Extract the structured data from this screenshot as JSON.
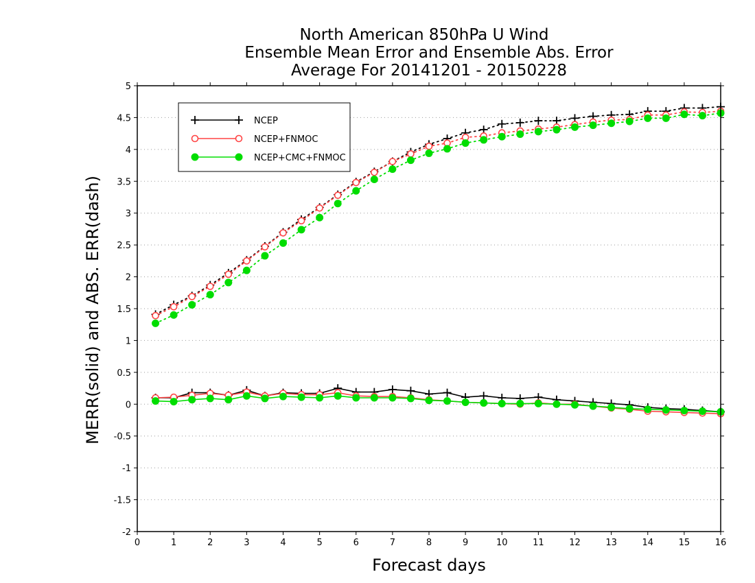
{
  "chart_data": {
    "type": "line",
    "title": [
      "North American 850hPa U Wind",
      "Ensemble Mean Error and Ensemble Abs. Error",
      "Average For 20141201 - 20150228"
    ],
    "xlabel": "Forecast days",
    "ylabel": "MERR(solid) and ABS. ERR(dash)",
    "xlim": [
      0,
      16
    ],
    "ylim": [
      -2,
      5
    ],
    "xticks": [
      0,
      1,
      2,
      3,
      4,
      5,
      6,
      7,
      8,
      9,
      10,
      11,
      12,
      13,
      14,
      15,
      16
    ],
    "xtick_labels": [
      "0",
      "1",
      "2",
      "3",
      "4",
      "5",
      "6",
      "7",
      "8",
      "9",
      "10",
      "11",
      "12",
      "13",
      "14",
      "15",
      "16"
    ],
    "yticks": [
      -2,
      -1.5,
      -1,
      -0.5,
      0,
      0.5,
      1,
      1.5,
      2,
      2.5,
      3,
      3.5,
      4,
      4.5,
      5
    ],
    "ytick_labels": [
      "-2",
      "-1.5",
      "-1",
      "-0.5",
      "0",
      "0.5",
      "1",
      "1.5",
      "2",
      "2.5",
      "3",
      "3.5",
      "4",
      "4.5",
      "5"
    ],
    "grid": "horizontal dotted",
    "legend_position": "top-left",
    "x": [
      0.5,
      1,
      1.5,
      2,
      2.5,
      3,
      3.5,
      4,
      4.5,
      5,
      5.5,
      6,
      6.5,
      7,
      7.5,
      8,
      8.5,
      9,
      9.5,
      10,
      10.5,
      11,
      11.5,
      12,
      12.5,
      13,
      13.5,
      14,
      14.5,
      15,
      15.5,
      16
    ],
    "series": [
      {
        "name": "NCEP",
        "color": "#000000",
        "marker": "plus",
        "abs_error": [
          1.41,
          1.56,
          1.7,
          1.87,
          2.06,
          2.26,
          2.48,
          2.7,
          2.9,
          3.09,
          3.29,
          3.49,
          3.65,
          3.81,
          3.96,
          4.08,
          4.17,
          4.26,
          4.31,
          4.4,
          4.42,
          4.45,
          4.45,
          4.49,
          4.52,
          4.54,
          4.55,
          4.6,
          4.6,
          4.65,
          4.65,
          4.67
        ],
        "mean_error": [
          0.1,
          0.1,
          0.18,
          0.18,
          0.14,
          0.22,
          0.13,
          0.18,
          0.17,
          0.17,
          0.25,
          0.19,
          0.19,
          0.23,
          0.21,
          0.16,
          0.18,
          0.11,
          0.13,
          0.1,
          0.09,
          0.11,
          0.07,
          0.05,
          0.03,
          0.01,
          -0.01,
          -0.05,
          -0.07,
          -0.08,
          -0.1,
          -0.12
        ]
      },
      {
        "name": "NCEP+FNMOC",
        "color": "#ff4444",
        "marker": "open-circle",
        "abs_error": [
          1.39,
          1.53,
          1.69,
          1.85,
          2.04,
          2.25,
          2.47,
          2.69,
          2.88,
          3.08,
          3.28,
          3.48,
          3.64,
          3.81,
          3.93,
          4.05,
          4.1,
          4.19,
          4.21,
          4.26,
          4.29,
          4.32,
          4.35,
          4.39,
          4.43,
          4.46,
          4.47,
          4.54,
          4.54,
          4.59,
          4.58,
          4.6
        ],
        "mean_error": [
          0.1,
          0.11,
          0.14,
          0.17,
          0.14,
          0.19,
          0.13,
          0.17,
          0.15,
          0.15,
          0.18,
          0.13,
          0.12,
          0.12,
          0.1,
          0.07,
          0.05,
          0.03,
          0.02,
          0.01,
          0.0,
          0.02,
          0.0,
          0.0,
          -0.03,
          -0.06,
          -0.08,
          -0.11,
          -0.12,
          -0.13,
          -0.14,
          -0.15
        ]
      },
      {
        "name": "NCEP+CMC+FNMOC",
        "color": "#00dd00",
        "marker": "filled-circle",
        "abs_error": [
          1.27,
          1.4,
          1.56,
          1.72,
          1.91,
          2.1,
          2.33,
          2.53,
          2.74,
          2.93,
          3.15,
          3.35,
          3.53,
          3.69,
          3.83,
          3.94,
          4.01,
          4.1,
          4.15,
          4.2,
          4.24,
          4.28,
          4.31,
          4.35,
          4.38,
          4.41,
          4.44,
          4.49,
          4.49,
          4.55,
          4.53,
          4.57
        ],
        "mean_error": [
          0.05,
          0.04,
          0.07,
          0.09,
          0.07,
          0.13,
          0.09,
          0.12,
          0.11,
          0.1,
          0.13,
          0.1,
          0.1,
          0.1,
          0.09,
          0.06,
          0.05,
          0.03,
          0.02,
          0.01,
          0.01,
          0.01,
          0.0,
          -0.01,
          -0.03,
          -0.05,
          -0.07,
          -0.08,
          -0.09,
          -0.1,
          -0.11,
          -0.12
        ]
      }
    ]
  }
}
